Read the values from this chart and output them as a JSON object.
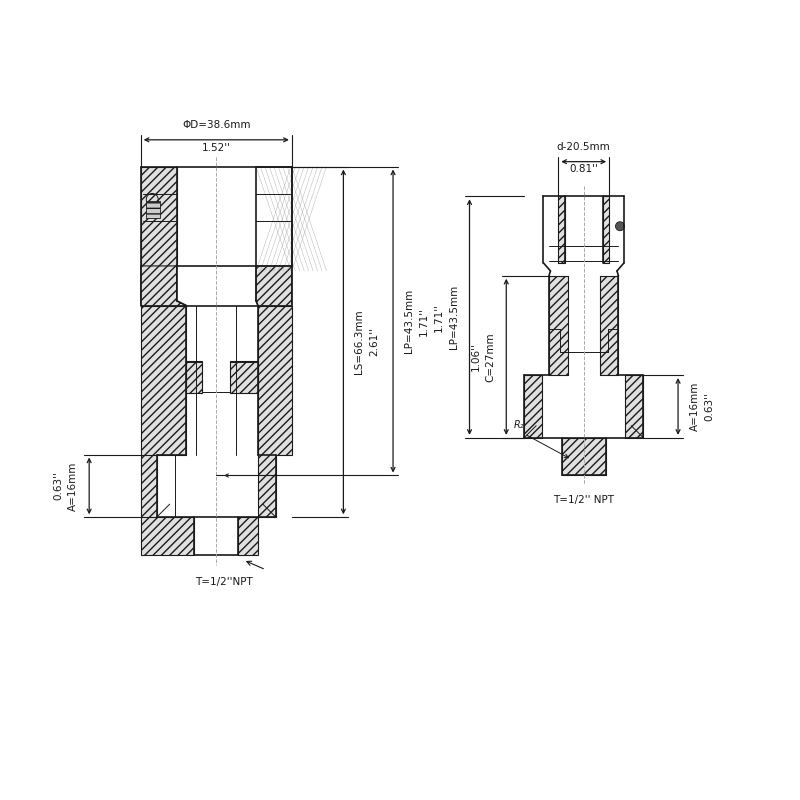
{
  "bg_color": "#ffffff",
  "line_color": "#1a1a1a",
  "dim_color": "#1a1a1a",
  "fig_width": 8.0,
  "fig_height": 8.0,
  "left_coupler": {
    "label_phi_d": "ΦD=38.6mm",
    "label_phi_d_inch": "1.52''",
    "label_ls": "LS=66.3mm",
    "label_ls_inch": "2.61''",
    "label_lp": "LP=43.5mm",
    "label_lp_inch": "1.71''",
    "label_a": "A=16mm",
    "label_a_inch": "0.63''",
    "label_t": "T=1/2''NPT"
  },
  "right_coupler": {
    "label_d": "d-20.5mm",
    "label_d_inch": "0.81''",
    "label_c": "C=27mm",
    "label_c_inch": "1.06''",
    "label_lp": "LP=43.5mm",
    "label_lp_inch": "1.71''",
    "label_a": "A=16mm",
    "label_a_inch": "0.63''",
    "label_t": "T=1/2'' NPT"
  }
}
